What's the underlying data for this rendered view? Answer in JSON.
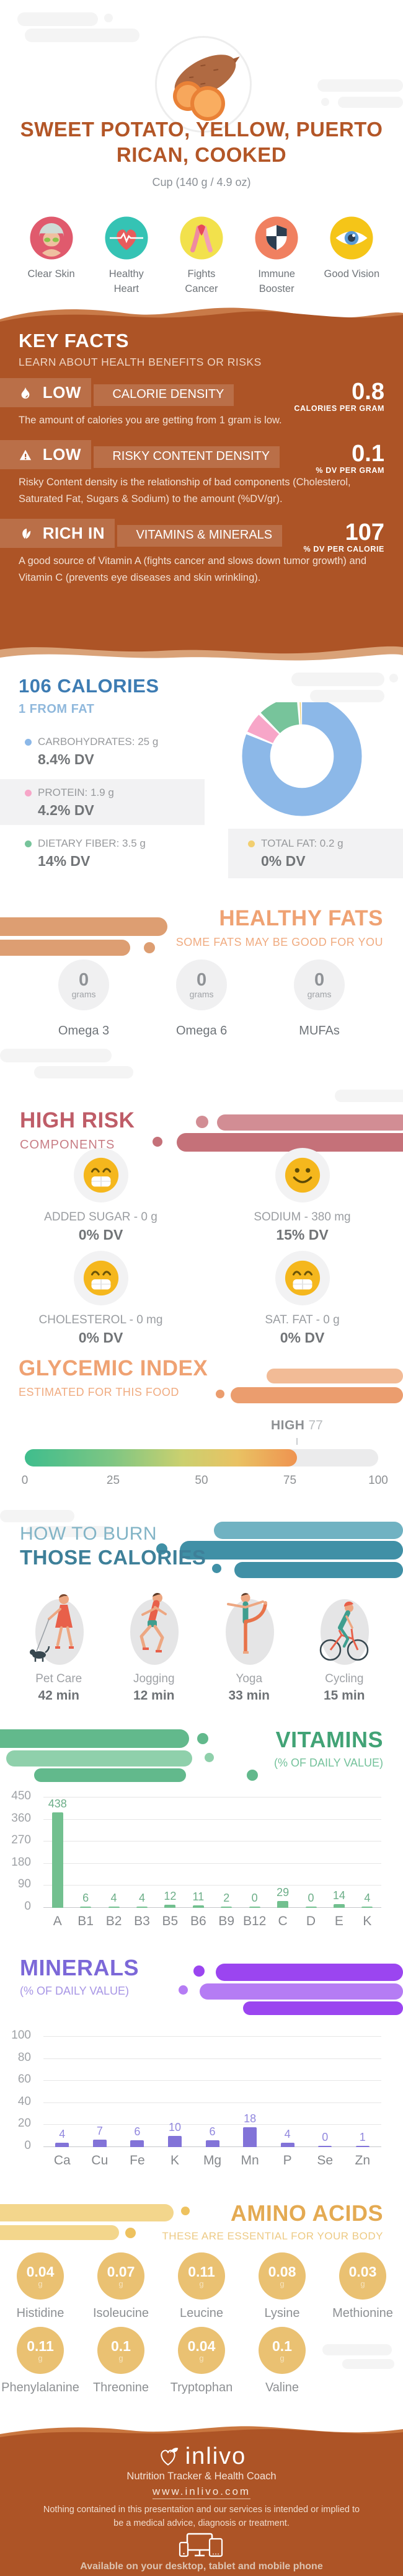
{
  "hero": {
    "title": "SWEET POTATO, YELLOW, PUERTO RICAN, COOKED",
    "serving": "Cup (140 g / 4.9 oz)"
  },
  "benefits": {
    "items": [
      {
        "label": "Clear Skin"
      },
      {
        "label": "Healthy Heart"
      },
      {
        "label": "Fights Cancer"
      },
      {
        "label": "Immune Booster"
      },
      {
        "label": "Good Vision"
      }
    ]
  },
  "key_facts": {
    "heading": "KEY FACTS",
    "subheading": "LEARN ABOUT HEALTH BENEFITS OR RISKS",
    "facts": [
      {
        "icon": "flame",
        "badge": "LOW",
        "category": "CALORIE DENSITY",
        "value": "0.8",
        "unit": "CALORIES PER GRAM",
        "description": "The amount of calories you are getting from 1 gram is low."
      },
      {
        "icon": "warning",
        "badge": "LOW",
        "category": "RISKY CONTENT DENSITY",
        "value": "0.1",
        "unit": "% DV PER GRAM",
        "description": "Risky Content density is the relationship of bad components (Cholesterol, Saturated Fat, Sugars & Sodium) to the amount (%DV/gr)."
      },
      {
        "icon": "leaf",
        "badge": "RICH IN",
        "category": "VITAMINS & MINERALS",
        "value": "107",
        "unit": "% DV PER CALORIE",
        "description": "A good source of Vitamin A (fights cancer and slows down tumor growth) and Vitamin C (prevents eye diseases and skin wrinkling)."
      }
    ]
  },
  "calories": {
    "headline": "106 CALORIES",
    "subline": "1 FROM FAT"
  },
  "healthy_fats": {
    "heading": "HEALTHY FATS",
    "subheading": "SOME FATS MAY BE GOOD FOR YOU",
    "items": [
      {
        "value": "0",
        "unit": "grams",
        "name": "Omega 3"
      },
      {
        "value": "0",
        "unit": "grams",
        "name": "Omega 6"
      },
      {
        "value": "0",
        "unit": "grams",
        "name": "MUFAs"
      }
    ]
  },
  "high_risk": {
    "heading": "HIGH RISK",
    "subheading": "COMPONENTS",
    "items": [
      {
        "name": "ADDED SUGAR - 0 g",
        "dv": "0% DV",
        "face": "grin"
      },
      {
        "name": "SODIUM - 380 mg",
        "dv": "15% DV",
        "face": "smile"
      },
      {
        "name": "CHOLESTEROL - 0 mg",
        "dv": "0% DV",
        "face": "grin"
      },
      {
        "name": "SAT. FAT - 0 g",
        "dv": "0% DV",
        "face": "grin"
      }
    ]
  },
  "glycemic": {
    "heading": "GLYCEMIC INDEX",
    "subheading": "ESTIMATED FOR THIS FOOD",
    "level": "HIGH"
  },
  "burn": {
    "heading_line1": "HOW TO BURN",
    "heading_line2": "THOSE CALORIES",
    "activities": [
      {
        "name": "Pet Care",
        "time": "42 min"
      },
      {
        "name": "Jogging",
        "time": "12 min"
      },
      {
        "name": "Yoga",
        "time": "33 min"
      },
      {
        "name": "Cycling",
        "time": "15 min"
      }
    ]
  },
  "vitamins": {
    "heading": "VITAMINS",
    "subheading": "(% OF DAILY VALUE)"
  },
  "minerals": {
    "heading": "MINERALS",
    "subheading": "(% OF DAILY VALUE)"
  },
  "amino_acids": {
    "heading": "AMINO ACIDS",
    "subheading": "THESE ARE ESSENTIAL FOR YOUR BODY",
    "items": [
      {
        "name": "Histidine",
        "value": "0.04",
        "unit": "g"
      },
      {
        "name": "Isoleucine",
        "value": "0.07",
        "unit": "g"
      },
      {
        "name": "Leucine",
        "value": "0.11",
        "unit": "g"
      },
      {
        "name": "Lysine",
        "value": "0.08",
        "unit": "g"
      },
      {
        "name": "Methionine",
        "value": "0.03",
        "unit": "g"
      },
      {
        "name": "Phenylalanine",
        "value": "0.11",
        "unit": "g"
      },
      {
        "name": "Threonine",
        "value": "0.1",
        "unit": "g"
      },
      {
        "name": "Tryptophan",
        "value": "0.04",
        "unit": "g"
      },
      {
        "name": "Valine",
        "value": "0.1",
        "unit": "g"
      }
    ]
  },
  "footer": {
    "brand": "inlivo",
    "tagline": "Nutrition Tracker & Health Coach",
    "url": "www.inlivo.com",
    "disclaimer": "Nothing contained in this presentation and our services is intended or implied to be a medical advice, diagnosis or treatment.",
    "availability": "Available on your desktop, tablet and mobile phone"
  },
  "chart_data": [
    {
      "id": "macros",
      "type": "pie",
      "title": "106 CALORIES - macronutrient breakdown",
      "series": [
        {
          "key": "carbohydrates",
          "label": "CARBOHYDRATES: 25 g",
          "grams": 25,
          "dv": "8.4% DV",
          "pct": 81.7,
          "color": "#8cb8e8"
        },
        {
          "key": "protein",
          "label": "PROTEIN: 1.9 g",
          "grams": 1.9,
          "dv": "4.2% DV",
          "pct": 6.2,
          "color": "#f7a6c8"
        },
        {
          "key": "dietary-fiber",
          "label": "DIETARY FIBER: 3.5 g",
          "grams": 3.5,
          "dv": "14% DV",
          "pct": 11.4,
          "color": "#77c49b"
        },
        {
          "key": "total-fat",
          "label": "TOTAL FAT: 0.2 g",
          "grams": 0.2,
          "dv": "0% DV",
          "pct": 0.7,
          "color": "#f2cf70"
        }
      ]
    },
    {
      "id": "glycemic",
      "type": "gauge",
      "value": 77,
      "level": "HIGH",
      "range": [
        0,
        100
      ],
      "scale": [
        0,
        25,
        50,
        75,
        100
      ]
    },
    {
      "id": "vitamins",
      "type": "bar",
      "title": "VITAMINS (% OF DAILY VALUE)",
      "categories": [
        "A",
        "B1",
        "B2",
        "B3",
        "B5",
        "B6",
        "B9",
        "B12",
        "C",
        "D",
        "E",
        "K"
      ],
      "values": [
        438,
        6,
        4,
        4,
        12,
        11,
        2,
        0,
        29,
        0,
        14,
        4
      ],
      "ylim": [
        0,
        450
      ],
      "yticks": [
        0,
        90,
        180,
        270,
        360,
        450
      ],
      "color": "#72c08f",
      "label_color": "#6cae88"
    },
    {
      "id": "minerals",
      "type": "bar",
      "title": "MINERALS (% OF DAILY VALUE)",
      "categories": [
        "Ca",
        "Cu",
        "Fe",
        "K",
        "Mg",
        "Mn",
        "P",
        "Se",
        "Zn"
      ],
      "values": [
        4,
        7,
        6,
        10,
        6,
        18,
        4,
        0,
        1
      ],
      "ylim": [
        0,
        100
      ],
      "yticks": [
        0,
        20,
        40,
        60,
        80,
        100
      ],
      "color": "#8273d8",
      "label_color": "#9187de"
    }
  ]
}
